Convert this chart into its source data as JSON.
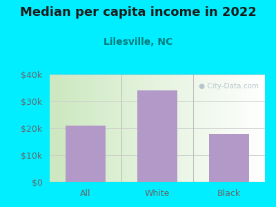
{
  "title": "Median per capita income in 2022",
  "subtitle": "Lilesville, NC",
  "categories": [
    "All",
    "White",
    "Black"
  ],
  "values": [
    21000,
    34000,
    18000
  ],
  "bar_color": "#b399c8",
  "background_color": "#00eeff",
  "title_color": "#1a1a1a",
  "subtitle_color": "#007b7b",
  "tick_color": "#666666",
  "ylim": [
    0,
    40000
  ],
  "yticks": [
    0,
    10000,
    20000,
    30000,
    40000
  ],
  "ytick_labels": [
    "$0",
    "$10k",
    "$20k",
    "$30k",
    "$40k"
  ],
  "watermark": "City-Data.com",
  "title_fontsize": 13,
  "subtitle_fontsize": 10,
  "tick_fontsize": 9
}
